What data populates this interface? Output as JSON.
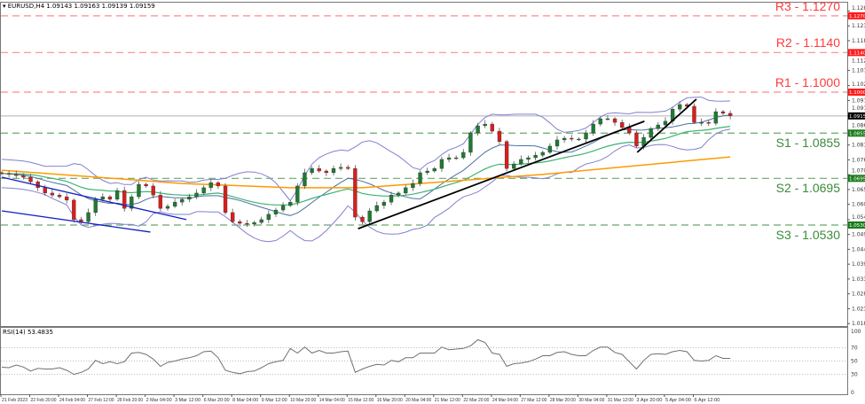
{
  "header": {
    "symbol": "EURUSD,H4",
    "ohlc": "1.09143 1.09163 1.09139 1.09159"
  },
  "colors": {
    "bull": "#1f7a32",
    "bear": "#d81e1e",
    "resistance": "#ff3b3b",
    "support": "#3a8a3a",
    "bollinger": "#8080d0",
    "ma_fast": "#3cb371",
    "ma_slow": "#ff9900",
    "trendline_black": "#000000",
    "channel": "#1020c0",
    "price_line": "#b0b0b8",
    "rsi": "#707070"
  },
  "levels": [
    {
      "name": "R3",
      "label": "R3 - 1.1270",
      "price": 1.127,
      "tag": "1.12700",
      "type": "resistance"
    },
    {
      "name": "R2",
      "label": "R2 - 1.1140",
      "price": 1.114,
      "tag": "1.11400",
      "type": "resistance"
    },
    {
      "name": "R1",
      "label": "R1 - 1.1000",
      "price": 1.1,
      "tag": "1.10000",
      "type": "resistance"
    },
    {
      "name": "S1",
      "label": "S1 - 1.0855",
      "price": 1.0855,
      "tag": "1.08550",
      "type": "support"
    },
    {
      "name": "S2",
      "label": "S2 - 1.0695",
      "price": 1.0695,
      "tag": "1.06950",
      "type": "support"
    },
    {
      "name": "S3",
      "label": "S3 - 1.0530",
      "price": 1.053,
      "tag": "1.05300",
      "type": "support"
    }
  ],
  "current_price": {
    "price": 1.09159,
    "tag": "1.09159"
  },
  "rsi_header": "RSI(14) 53.4835",
  "chart_data": [
    {
      "type": "candlestick",
      "title": "EURUSD,H4",
      "y_ticks": [
        "1.12870",
        "1.12345",
        "1.11820",
        "1.11295",
        "1.10770",
        "1.10230",
        "1.09705",
        "1.09180",
        "1.08655",
        "1.08130",
        "1.07605",
        "1.07080",
        "1.06555",
        "1.06030",
        "1.05490",
        "1.04965",
        "1.04440",
        "1.03915",
        "1.03390",
        "1.02865",
        "1.02340",
        "1.01815"
      ],
      "ylim": [
        1.01815,
        1.1287
      ],
      "x_ticks": [
        "21 Feb 2023",
        "22 Feb 20:00",
        "24 Feb 04:00",
        "27 Feb 12:00",
        "28 Feb 20:00",
        "2 Mar 04:00",
        "3 Mar 12:00",
        "6 Mar 20:00",
        "8 Mar 04:00",
        "9 Mar 12:00",
        "10 Mar 20:00",
        "14 Mar 04:00",
        "15 Mar 12:00",
        "16 Mar 20:00",
        "20 Mar 04:00",
        "21 Mar 12:00",
        "22 Mar 20:00",
        "24 Mar 04:00",
        "27 Mar 12:00",
        "28 Mar 20:00",
        "30 Mar 04:00",
        "31 Mar 12:00",
        "3 Apr 20:00",
        "5 Apr 04:00",
        "6 Apr 12:00"
      ],
      "closes": [
        1.0712,
        1.0709,
        1.0705,
        1.0699,
        1.0683,
        1.0662,
        1.0643,
        1.0636,
        1.063,
        1.0618,
        1.0549,
        1.0542,
        1.0574,
        1.0621,
        1.063,
        1.0621,
        1.0652,
        1.0589,
        1.063,
        1.0674,
        1.0668,
        1.0636,
        1.0589,
        1.0596,
        1.0611,
        1.0621,
        1.063,
        1.0643,
        1.0662,
        1.068,
        1.0668,
        1.0574,
        1.0542,
        1.0536,
        1.0533,
        1.0539,
        1.0549,
        1.0568,
        1.0583,
        1.0599,
        1.0611,
        1.0668,
        1.0715,
        1.073,
        1.0721,
        1.0715,
        1.073,
        1.0734,
        1.073,
        1.0558,
        1.0542,
        1.058,
        1.0599,
        1.0611,
        1.0636,
        1.0643,
        1.0662,
        1.0677,
        1.0715,
        1.0721,
        1.073,
        1.0762,
        1.0768,
        1.0768,
        1.0787,
        1.0856,
        1.0881,
        1.0887,
        1.0862,
        1.0825,
        1.073,
        1.0746,
        1.0762,
        1.0768,
        1.0777,
        1.0787,
        1.0809,
        1.0831,
        1.0837,
        1.0834,
        1.0834,
        1.0856,
        1.0887,
        1.0906,
        1.0906,
        1.0893,
        1.0875,
        1.0856,
        1.0809,
        1.084,
        1.0871,
        1.0884,
        1.0897,
        1.094,
        1.0956,
        1.095,
        1.0893,
        1.0893,
        1.089,
        1.0931,
        1.0925,
        1.0916
      ],
      "ma_slow_anchors": [
        {
          "i": 0,
          "p": 1.0724
        },
        {
          "i": 25,
          "p": 1.0677
        },
        {
          "i": 40,
          "p": 1.0662
        },
        {
          "i": 50,
          "p": 1.0662
        },
        {
          "i": 75,
          "p": 1.0709
        },
        {
          "i": 101,
          "p": 1.0771
        }
      ],
      "trendlines": [
        {
          "name": "channel-upper",
          "from": {
            "i": 0,
            "p": 1.0699
          },
          "to": {
            "i": 25.6,
            "p": 1.0549
          },
          "color": "channel"
        },
        {
          "name": "channel-lower",
          "from": {
            "i": 0,
            "p": 1.058
          },
          "to": {
            "i": 20.6,
            "p": 1.0505
          },
          "color": "channel"
        },
        {
          "name": "uptrend-main",
          "from": {
            "i": 49.4,
            "p": 1.0517
          },
          "to": {
            "i": 89.1,
            "p": 1.0897
          },
          "color": "trendline_black"
        },
        {
          "name": "uptrend-short",
          "from": {
            "i": 88.1,
            "p": 1.0787
          },
          "to": {
            "i": 96.3,
            "p": 1.0975
          },
          "color": "trendline_black"
        }
      ]
    },
    {
      "type": "line",
      "title": "RSI(14) 53.4835",
      "ylim": [
        0,
        100
      ],
      "y_ticks": [
        "100",
        "70",
        "50",
        "30",
        "0"
      ],
      "levels": [
        70,
        50,
        30
      ],
      "values": [
        40.7,
        40,
        44,
        41,
        35,
        39,
        38,
        38,
        40,
        36,
        30,
        33,
        38,
        51,
        46,
        49,
        46,
        49,
        62,
        63,
        60,
        53,
        42,
        48,
        50,
        53,
        55,
        58,
        64,
        65,
        55,
        36,
        33,
        31,
        34,
        35,
        40,
        46,
        49,
        51,
        69,
        62,
        71,
        62,
        66,
        62,
        62,
        64,
        65,
        33,
        38,
        42,
        45,
        44,
        51,
        49,
        55,
        55,
        62,
        62,
        62,
        71,
        67,
        68,
        69,
        73,
        82,
        78,
        62,
        60,
        42,
        46,
        47,
        49,
        53,
        58,
        58,
        63,
        64,
        60,
        58,
        58,
        66,
        71,
        71,
        63,
        60,
        49,
        38,
        51,
        60,
        61,
        60,
        64,
        66,
        64,
        51,
        50,
        51,
        58,
        54,
        54
      ]
    }
  ]
}
